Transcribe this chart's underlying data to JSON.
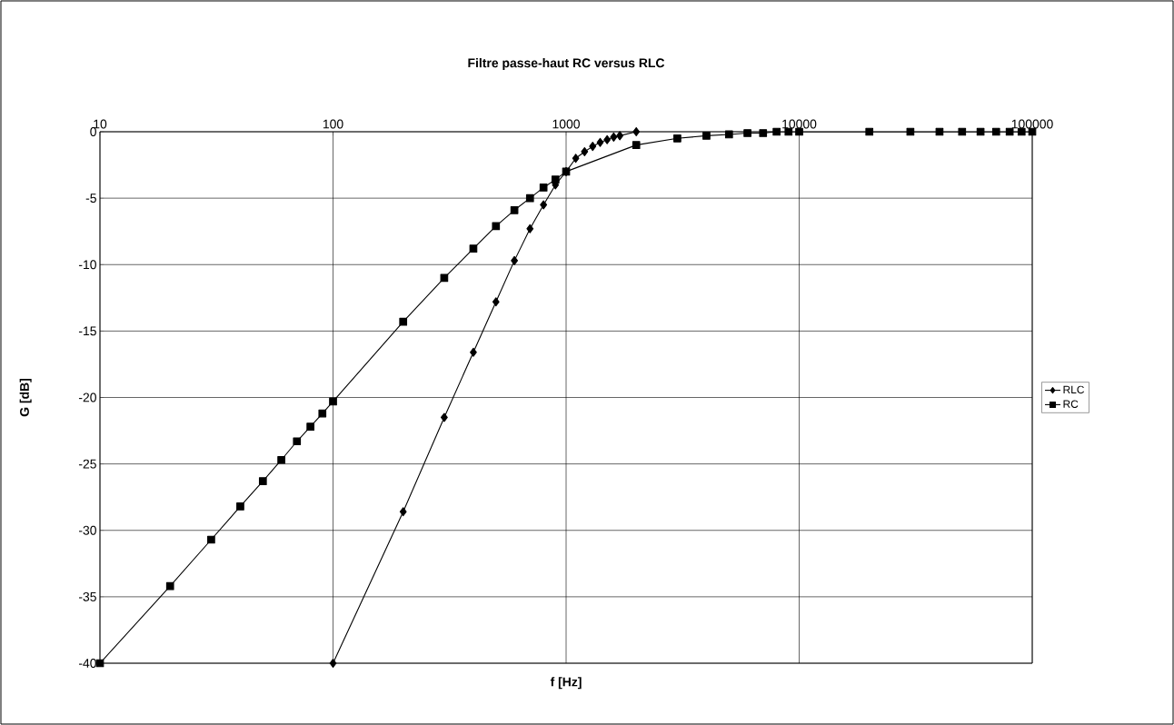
{
  "chart_data": {
    "type": "line",
    "title": "Filtre passe-haut RC versus RLC",
    "xlabel": "f [Hz]",
    "ylabel": "G [dB]",
    "log": "x",
    "grid": true,
    "legend": "right",
    "line_style": "solid",
    "xlim": [
      10,
      100000
    ],
    "ylim": [
      -40,
      0
    ],
    "xticks": [
      10,
      100,
      1000,
      10000,
      100000
    ],
    "yticks": [
      0,
      -5,
      -10,
      -15,
      -20,
      -25,
      -30,
      -35,
      -40
    ],
    "series": [
      {
        "name": "RLC",
        "color": "#000000",
        "marker": "diamond",
        "x": [
          100,
          200,
          300,
          400,
          500,
          600,
          700,
          800,
          900,
          1000,
          1100,
          1200,
          1300,
          1400,
          1500,
          1600,
          1700,
          2000
        ],
        "values": [
          -40,
          -28.6,
          -21.5,
          -16.6,
          -12.8,
          -9.7,
          -7.3,
          -5.5,
          -4.0,
          -3.0,
          -2.0,
          -1.5,
          -1.1,
          -0.8,
          -0.6,
          -0.4,
          -0.3,
          0
        ]
      },
      {
        "name": "RC",
        "color": "#000000",
        "marker": "square",
        "x": [
          10,
          20,
          30,
          40,
          50,
          60,
          70,
          80,
          90,
          100,
          200,
          300,
          400,
          500,
          600,
          700,
          800,
          900,
          1000,
          2000,
          3000,
          4000,
          5000,
          6000,
          7000,
          8000,
          9000,
          10000,
          20000,
          30000,
          40000,
          50000,
          60000,
          70000,
          80000,
          90000,
          100000
        ],
        "values": [
          -40,
          -34.2,
          -30.7,
          -28.2,
          -26.3,
          -24.7,
          -23.3,
          -22.2,
          -21.2,
          -20.3,
          -14.3,
          -11.0,
          -8.8,
          -7.1,
          -5.9,
          -5.0,
          -4.2,
          -3.6,
          -3.0,
          -1.0,
          -0.5,
          -0.3,
          -0.2,
          -0.1,
          -0.1,
          0,
          0,
          0,
          0,
          0,
          0,
          0,
          0,
          0,
          0,
          0,
          0
        ]
      }
    ]
  }
}
